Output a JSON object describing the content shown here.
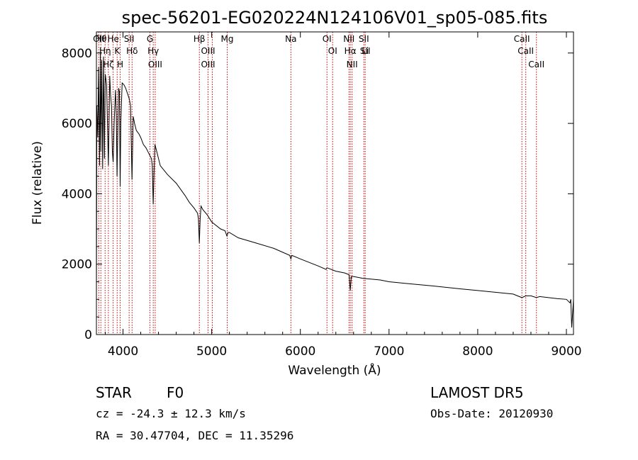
{
  "chart_data": {
    "type": "line",
    "title": "spec-56201-EG020224N124106V01_sp05-085.fits",
    "xlabel": "Wavelength (Å)",
    "ylabel": "Flux (relative)",
    "xlim": [
      3700,
      9080
    ],
    "ylim": [
      0,
      8600
    ],
    "xticks": [
      "4000",
      "5000",
      "6000",
      "7000",
      "8000",
      "9000"
    ],
    "yticks": [
      "0",
      "2000",
      "4000",
      "6000",
      "8000"
    ],
    "grid": false,
    "series": [
      {
        "x": [
          3700,
          3705,
          3715,
          3725,
          3735,
          3745,
          3750,
          3760,
          3770,
          3780,
          3790,
          3800,
          3815,
          3835,
          3850,
          3860,
          3870,
          3880,
          3889,
          3900,
          3915,
          3925,
          3933,
          3940,
          3950,
          3960,
          3968,
          3975,
          3990,
          4010,
          4030,
          4050,
          4070,
          4085,
          4101,
          4115,
          4130,
          4150,
          4180,
          4200,
          4230,
          4260,
          4280,
          4300,
          4320,
          4330,
          4340,
          4350,
          4360,
          4380,
          4420,
          4500,
          4600,
          4700,
          4750,
          4800,
          4840,
          4850,
          4861,
          4870,
          4880,
          4900,
          4950,
          5000,
          5100,
          5150,
          5172,
          5185,
          5200,
          5300,
          5500,
          5700,
          5880,
          5893,
          5905,
          6000,
          6200,
          6290,
          6300,
          6400,
          6500,
          6550,
          6563,
          6575,
          6600,
          6700,
          6900,
          7000,
          7200,
          7500,
          7800,
          8000,
          8200,
          8400,
          8498,
          8542,
          8600,
          8662,
          8700,
          8900,
          9000,
          9040,
          9050,
          9060,
          9080
        ],
        "values": [
          1000,
          6500,
          5600,
          7600,
          4800,
          8000,
          5200,
          7800,
          4700,
          7900,
          5000,
          7400,
          7100,
          4800,
          7350,
          6800,
          6500,
          5200,
          4900,
          6000,
          6950,
          6200,
          4500,
          5600,
          7000,
          6900,
          4200,
          6000,
          7150,
          7100,
          7000,
          6850,
          6700,
          6500,
          4400,
          6200,
          6000,
          5800,
          5700,
          5600,
          5400,
          5300,
          5200,
          5100,
          5000,
          4800,
          3700,
          4600,
          5400,
          5200,
          4800,
          4550,
          4300,
          3950,
          3750,
          3600,
          3450,
          3300,
          2600,
          3300,
          3650,
          3550,
          3400,
          3200,
          3000,
          2950,
          2800,
          2900,
          2900,
          2750,
          2600,
          2450,
          2250,
          2150,
          2250,
          2150,
          1950,
          1850,
          1900,
          1800,
          1750,
          1700,
          1250,
          1650,
          1650,
          1600,
          1550,
          1500,
          1450,
          1380,
          1300,
          1250,
          1200,
          1150,
          1050,
          1100,
          1100,
          1050,
          1080,
          1020,
          1000,
          900,
          1000,
          200,
          1000
        ]
      }
    ],
    "line_markers": [
      {
        "labels": [
          "Hθ"
        ],
        "x": 3750
      },
      {
        "labels": [
          "Hη"
        ],
        "x": 3798
      },
      {
        "labels": [
          "Hζ"
        ],
        "x": 3835
      },
      {
        "labels": [
          "OII"
        ],
        "x": 3727
      },
      {
        "labels": [
          "He"
        ],
        "x": 3889
      },
      {
        "labels": [
          "K"
        ],
        "x": 3934
      },
      {
        "labels": [
          "H"
        ],
        "x": 3968
      },
      {
        "labels": [
          "SII"
        ],
        "x": 4069
      },
      {
        "labels": [
          "Hδ"
        ],
        "x": 4102
      },
      {
        "labels": [
          "G"
        ],
        "x": 4304
      },
      {
        "labels": [
          "Hγ"
        ],
        "x": 4341
      },
      {
        "labels": [
          "OIII"
        ],
        "x": 4363
      },
      {
        "labels": [
          "Hβ"
        ],
        "x": 4861
      },
      {
        "labels": [
          "OIII",
          "OIII"
        ],
        "x": 4959
      },
      {
        "labels": [],
        "x": 5007
      },
      {
        "labels": [
          "Mg"
        ],
        "x": 5175
      },
      {
        "labels": [
          "Na"
        ],
        "x": 5893
      },
      {
        "labels": [
          "OI"
        ],
        "x": 6300
      },
      {
        "labels": [
          "OI"
        ],
        "x": 6364
      },
      {
        "labels": [
          "NII"
        ],
        "x": 6548
      },
      {
        "labels": [
          "Hα"
        ],
        "x": 6563
      },
      {
        "labels": [
          "NII"
        ],
        "x": 6583
      },
      {
        "labels": [
          "SII"
        ],
        "x": 6716
      },
      {
        "labels": [
          "Li",
          "SII"
        ],
        "x": 6731
      },
      {
        "labels": [
          "CaII"
        ],
        "x": 8498
      },
      {
        "labels": [
          "CaII"
        ],
        "x": 8542
      },
      {
        "labels": [
          "CaII"
        ],
        "x": 8662
      }
    ]
  },
  "info": {
    "class": "STAR",
    "subclass": "F0",
    "survey": "LAMOST DR5",
    "cz": "cz = -24.3 ± 12.3 km/s",
    "obs_date": "Obs-Date: 20120930",
    "coords": "RA =  30.47704, DEC =  11.35296"
  },
  "colors": {
    "spectrum": "#000000",
    "marker": "#cc0000",
    "axes": "#000000"
  }
}
